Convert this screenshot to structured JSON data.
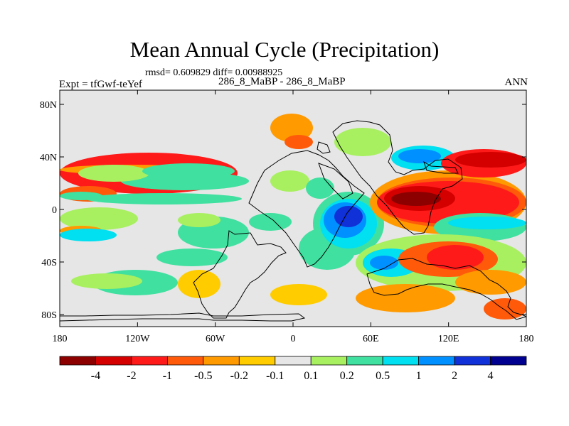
{
  "title": "Mean Annual Cycle (Precipitation)",
  "stats": "rmsd= 0.609829 diff= 0.00988925",
  "case": "286_8_MaBP - 286_8_MaBP",
  "expt": "Expt = tfGwf-teYef",
  "season": "ANN",
  "lat_ticks": [
    "80N",
    "40N",
    "0",
    "40S",
    "80S"
  ],
  "lon_ticks": [
    "180",
    "120W",
    "60W",
    "0",
    "60E",
    "120E",
    "180"
  ],
  "colorbar": {
    "labels": [
      "-4",
      "-2",
      "-1",
      "-0.5",
      "-0.2",
      "-0.1",
      "0.1",
      "0.2",
      "0.5",
      "1",
      "2",
      "4"
    ],
    "colors": [
      "#8c0000",
      "#d40000",
      "#ff1a1a",
      "#ff5a0a",
      "#ff9a00",
      "#ffcc00",
      "#e6e6e6",
      "#a8f060",
      "#40e0a0",
      "#00e0f0",
      "#0090ff",
      "#1030d8",
      "#000090"
    ]
  }
}
